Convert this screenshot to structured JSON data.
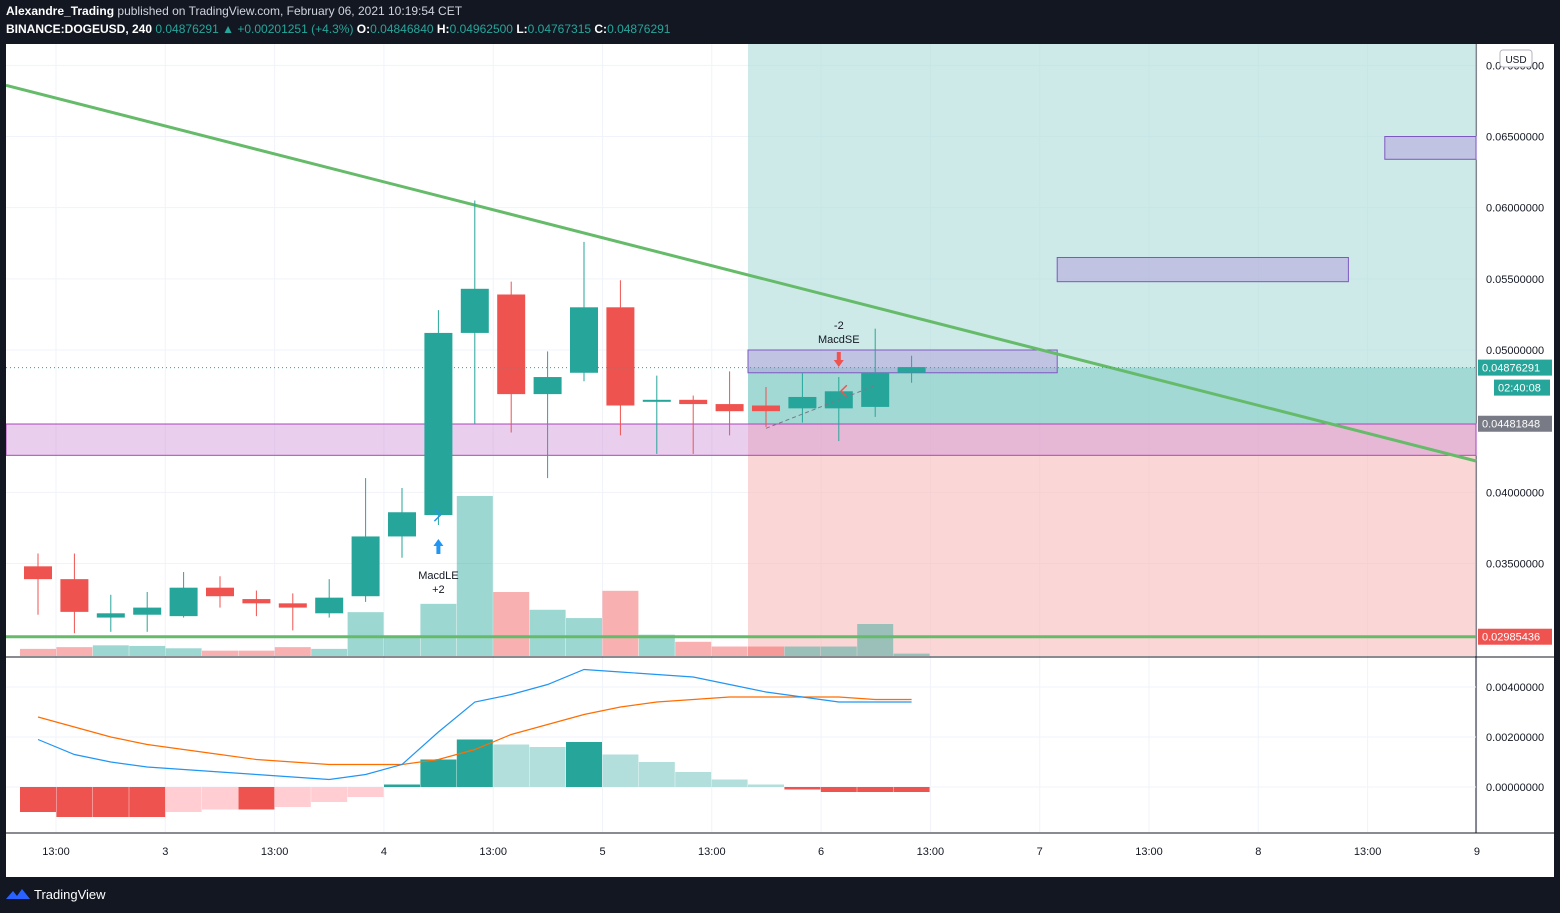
{
  "header": {
    "author": "Alexandre_Trading",
    "published_text": "published on TradingView.com, February 06, 2021 10:19:54 CET",
    "symbol": "BINANCE:DOGEUSD, 240",
    "price": "0.04876291",
    "change": "+0.00201251 (+4.3%)",
    "o_label": "O:",
    "o_value": "0.04846840",
    "h_label": "H:",
    "h_value": "0.04962500",
    "l_label": "L:",
    "l_value": "0.04767315",
    "c_label": "C:",
    "c_value": "0.04876291"
  },
  "footer": {
    "brand": "TradingView",
    "logo_icon": "tradingview-logo-icon"
  },
  "colors": {
    "up": "#26a69a",
    "down": "#ef5350",
    "up_light": "#b2dfdb",
    "down_light": "#ffcdd2",
    "trendline": "#66bb6a",
    "profit_zone": "#b2dfdb",
    "loss_zone": "#f8bbba",
    "zone_border": "#7e57c2",
    "macd_line": "#2196f3",
    "signal_line": "#ff6d00"
  },
  "chart_data": [
    {
      "type": "candlestick",
      "symbol": "BINANCE:DOGEUSD",
      "interval": "240",
      "currency": "USD",
      "x_ticks": [
        "13:00",
        "3",
        "13:00",
        "4",
        "13:00",
        "5",
        "13:00",
        "6",
        "13:00",
        "7",
        "13:00",
        "8",
        "13:00",
        "9"
      ],
      "y_ticks": [
        "0.07000000",
        "0.06500000",
        "0.06000000",
        "0.05500000",
        "0.05000000",
        "0.04000000",
        "0.03500000"
      ],
      "ylim": [
        0.0285,
        0.0715
      ],
      "candles": [
        {
          "o": 0.0348,
          "h": 0.0357,
          "l": 0.0314,
          "c": 0.0339
        },
        {
          "o": 0.0339,
          "h": 0.0357,
          "l": 0.0301,
          "c": 0.0316
        },
        {
          "o": 0.0312,
          "h": 0.0328,
          "l": 0.0302,
          "c": 0.0315
        },
        {
          "o": 0.0314,
          "h": 0.033,
          "l": 0.0302,
          "c": 0.0319
        },
        {
          "o": 0.0313,
          "h": 0.0344,
          "l": 0.0312,
          "c": 0.0333
        },
        {
          "o": 0.0333,
          "h": 0.0341,
          "l": 0.0319,
          "c": 0.0327
        },
        {
          "o": 0.0325,
          "h": 0.0331,
          "l": 0.0313,
          "c": 0.0322
        },
        {
          "o": 0.0322,
          "h": 0.0329,
          "l": 0.0303,
          "c": 0.0319
        },
        {
          "o": 0.0315,
          "h": 0.0339,
          "l": 0.0312,
          "c": 0.0326
        },
        {
          "o": 0.0327,
          "h": 0.041,
          "l": 0.0323,
          "c": 0.0369
        },
        {
          "o": 0.0369,
          "h": 0.0403,
          "l": 0.0354,
          "c": 0.0386
        },
        {
          "o": 0.0384,
          "h": 0.0528,
          "l": 0.0377,
          "c": 0.0512
        },
        {
          "o": 0.0512,
          "h": 0.0605,
          "l": 0.0448,
          "c": 0.0543
        },
        {
          "o": 0.0539,
          "h": 0.0548,
          "l": 0.0442,
          "c": 0.0469
        },
        {
          "o": 0.0469,
          "h": 0.0499,
          "l": 0.041,
          "c": 0.0481
        },
        {
          "o": 0.0484,
          "h": 0.0576,
          "l": 0.0478,
          "c": 0.053
        },
        {
          "o": 0.053,
          "h": 0.0549,
          "l": 0.044,
          "c": 0.0461
        },
        {
          "o": 0.0465,
          "h": 0.0482,
          "l": 0.0427,
          "c": 0.0465
        },
        {
          "o": 0.0465,
          "h": 0.0468,
          "l": 0.0427,
          "c": 0.0462
        },
        {
          "o": 0.0462,
          "h": 0.0485,
          "l": 0.044,
          "c": 0.0457
        },
        {
          "o": 0.0461,
          "h": 0.0474,
          "l": 0.0446,
          "c": 0.0457
        },
        {
          "o": 0.0459,
          "h": 0.0484,
          "l": 0.0449,
          "c": 0.0467
        },
        {
          "o": 0.0459,
          "h": 0.0481,
          "l": 0.0436,
          "c": 0.0471
        },
        {
          "o": 0.046,
          "h": 0.0515,
          "l": 0.0453,
          "c": 0.0484
        },
        {
          "o": 0.0484,
          "h": 0.0496,
          "l": 0.0477,
          "c": 0.0488
        }
      ],
      "volume": [
        0.6,
        0.75,
        0.9,
        0.85,
        0.65,
        0.45,
        0.45,
        0.75,
        0.6,
        3.7,
        1.6,
        4.4,
        13.5,
        5.4,
        3.9,
        3.2,
        5.5,
        1.8,
        1.2,
        0.8,
        0.8,
        0.8,
        0.8,
        2.7,
        0.2
      ],
      "last_price_label": "0.04876291",
      "countdown_label": "02:40:08",
      "entry_price_label": "0.04481848",
      "trendline_price_label": "0.02985436",
      "signals": [
        {
          "name": "MacdLE",
          "qty": "+2",
          "direction": "long",
          "bar": 11
        },
        {
          "name": "MacdSE",
          "qty": "-2",
          "direction": "short",
          "bar": 22
        }
      ],
      "horizontal_line_price": 0.02985436,
      "support_zone": [
        0.0426,
        0.0448
      ],
      "target_zones": [
        {
          "low": 0.0484,
          "high": 0.05
        },
        {
          "low": 0.0548,
          "high": 0.0565
        },
        {
          "low": 0.0634,
          "high": 0.065
        }
      ],
      "trendline": {
        "start_price": 0.0686,
        "end_price": 0.0422
      },
      "position": {
        "entry": 0.04481848,
        "take_profit": 0.0715,
        "stop_loss": 0.0285
      }
    },
    {
      "type": "macd",
      "y_ticks": [
        "0.00400000",
        "0.00200000",
        "0.00000000"
      ],
      "ylim": [
        -0.0018,
        0.0052
      ],
      "macd": [
        0.0019,
        0.0013,
        0.001,
        0.0008,
        0.0007,
        0.0006,
        0.0005,
        0.0004,
        0.0003,
        0.0005,
        0.0009,
        0.0022,
        0.0034,
        0.0037,
        0.0041,
        0.0047,
        0.0046,
        0.0045,
        0.0044,
        0.0041,
        0.0038,
        0.0036,
        0.0034,
        0.0034,
        0.0034
      ],
      "signal": [
        0.0028,
        0.0024,
        0.002,
        0.0017,
        0.0015,
        0.0013,
        0.0011,
        0.001,
        0.0009,
        0.0009,
        0.0009,
        0.0011,
        0.0015,
        0.0021,
        0.0025,
        0.0029,
        0.0032,
        0.0034,
        0.0035,
        0.0036,
        0.0036,
        0.0036,
        0.0036,
        0.0035,
        0.0035
      ],
      "histogram": [
        -0.001,
        -0.0012,
        -0.0012,
        -0.0012,
        -0.001,
        -0.0009,
        -0.0009,
        -0.0008,
        -0.0006,
        -0.0004,
        0.0001,
        0.0011,
        0.0019,
        0.0017,
        0.0016,
        0.0018,
        0.0013,
        0.001,
        0.0006,
        0.0003,
        0.0001,
        -0.0001,
        -0.0002,
        -0.0002,
        -0.0002
      ]
    }
  ]
}
